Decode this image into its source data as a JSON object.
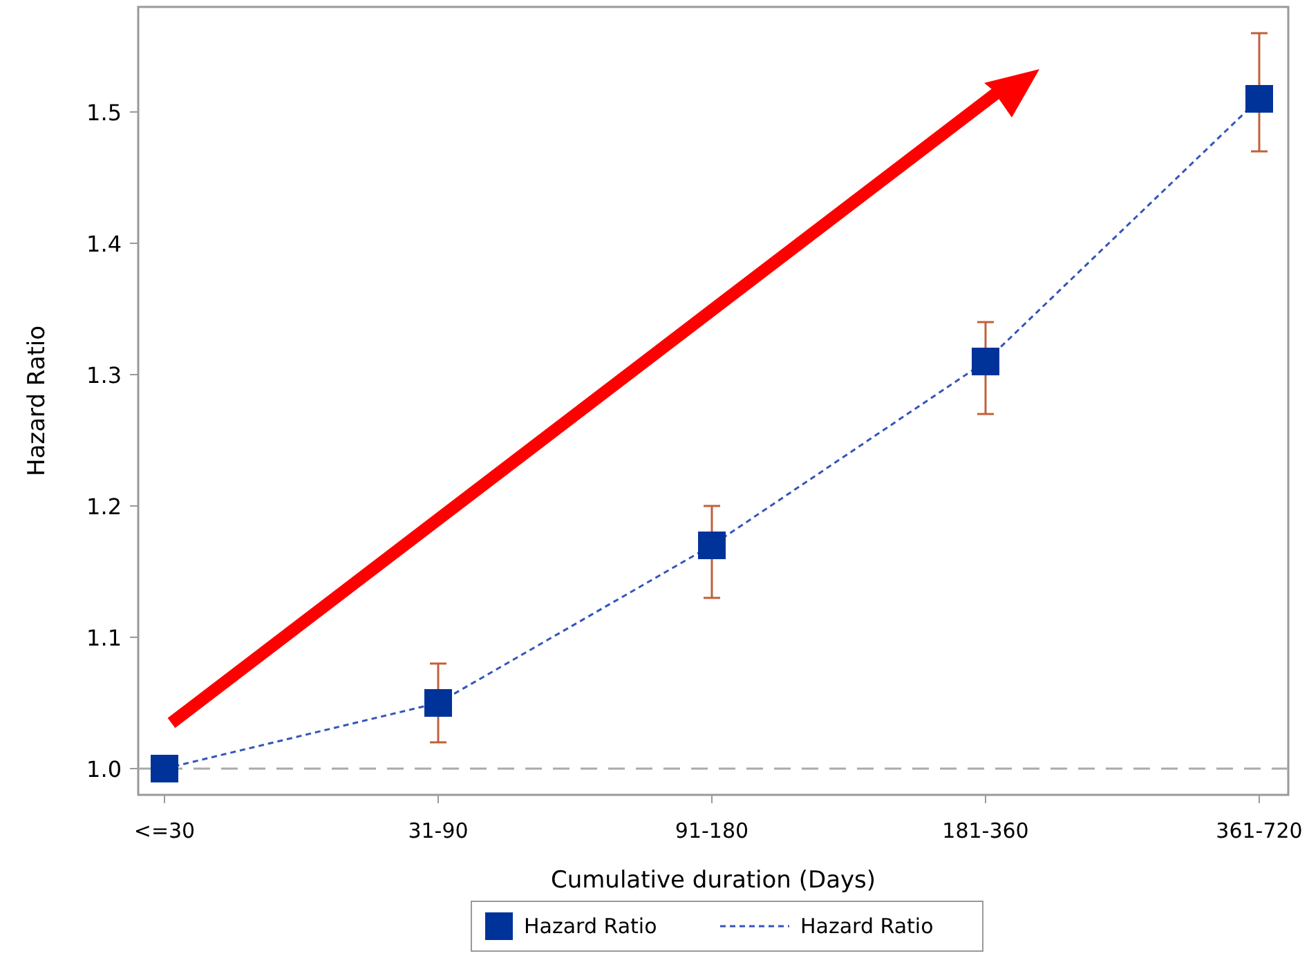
{
  "chart_data": {
    "type": "line",
    "xlabel": "Cumulative duration (Days)",
    "ylabel": "Hazard Ratio",
    "categories": [
      "<=30",
      "31-90",
      "91-180",
      "181-360",
      "361-720"
    ],
    "series": [
      {
        "name": "Hazard Ratio",
        "type": "scatter",
        "color": "#003399",
        "marker": "square",
        "values": [
          1.0,
          1.05,
          1.17,
          1.31,
          1.51
        ],
        "errors": [
          null,
          [
            1.02,
            1.08
          ],
          [
            1.13,
            1.2
          ],
          [
            1.27,
            1.34
          ],
          [
            1.47,
            1.56
          ]
        ]
      },
      {
        "name": "Hazard Ratio",
        "type": "line",
        "color": "#3355bb",
        "line_style": "dashed",
        "marker": "none",
        "values": [
          1.0,
          1.05,
          1.17,
          1.31,
          1.51
        ]
      }
    ],
    "ylim": [
      0.98,
      1.58
    ],
    "yticks": [
      {
        "value": 1,
        "label": "1.0"
      },
      1.1,
      1.2,
      1.3,
      1.4,
      1.5
    ],
    "ref_lines": [
      {
        "axis": "y",
        "value": 1.0,
        "color": "#aaaaaa",
        "line_style": "dashed"
      }
    ],
    "legend": "bottom",
    "grid": false
  }
}
